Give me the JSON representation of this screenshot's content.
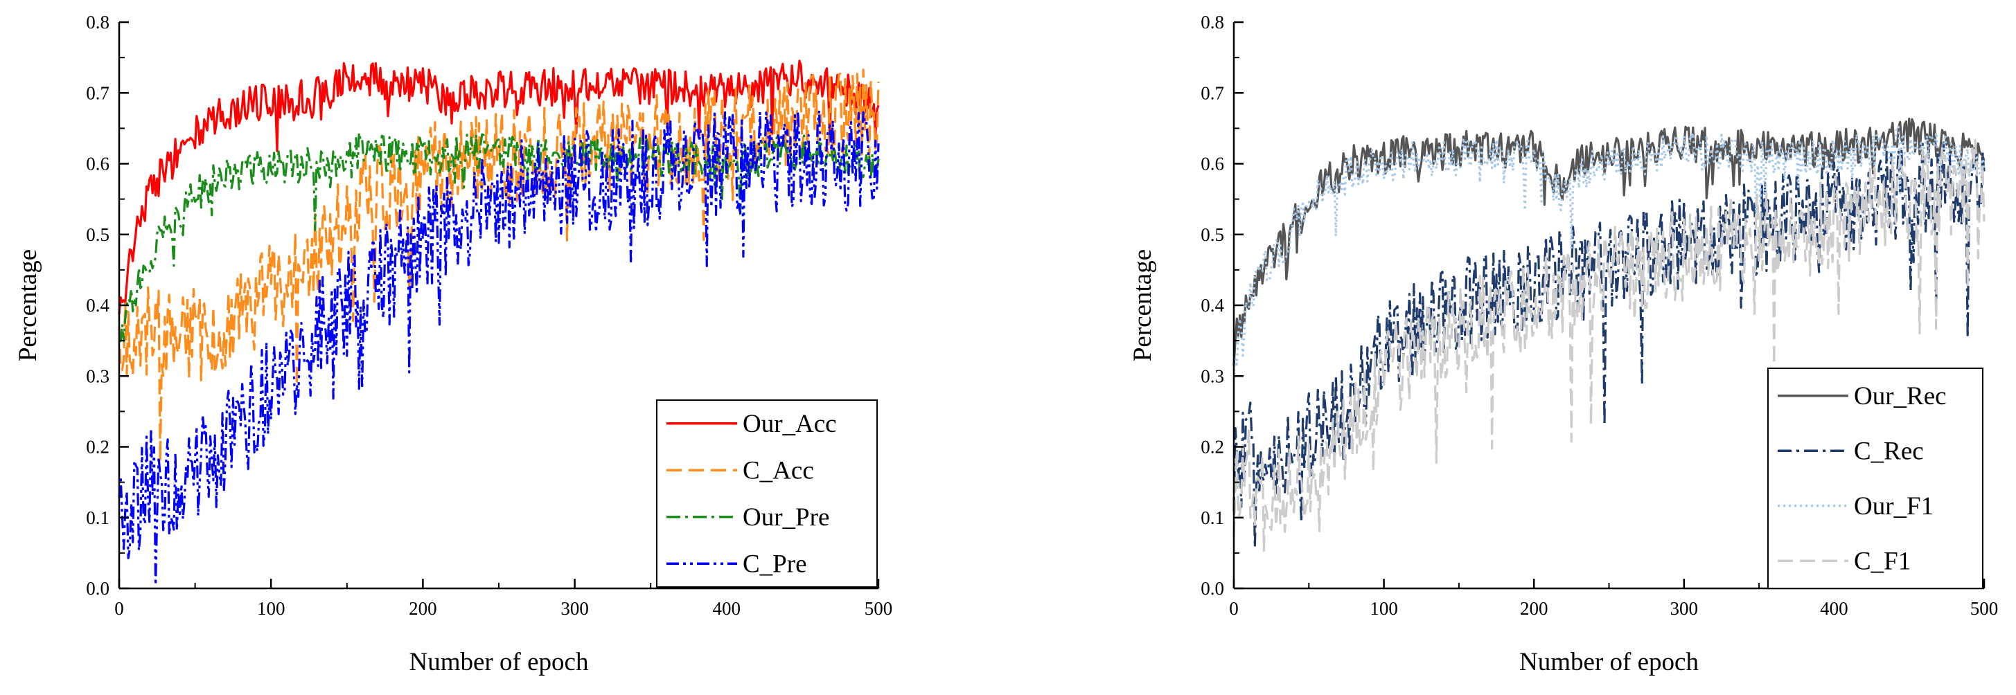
{
  "chart_data": [
    {
      "type": "line",
      "xlabel": "Number of epoch",
      "ylabel": "Percentage",
      "xlim": [
        0,
        500
      ],
      "ylim": [
        0,
        0.8
      ],
      "xticks": [
        "0",
        "100",
        "200",
        "300",
        "400",
        "500"
      ],
      "yticks": [
        "0.0",
        "0.1",
        "0.2",
        "0.3",
        "0.4",
        "0.5",
        "0.6",
        "0.7",
        "0.8"
      ],
      "legend_position": "bottom-right",
      "series": [
        {
          "name": "Our_Acc",
          "color": "#ff0000",
          "dash": "solid",
          "noise": 0.012,
          "x": [
            0,
            10,
            20,
            30,
            40,
            50,
            60,
            80,
            100,
            120,
            140,
            150,
            160,
            180,
            200,
            220,
            230,
            250,
            300,
            350,
            400,
            450,
            480,
            500
          ],
          "y": [
            0.38,
            0.5,
            0.56,
            0.59,
            0.62,
            0.64,
            0.66,
            0.68,
            0.69,
            0.695,
            0.7,
            0.72,
            0.725,
            0.71,
            0.715,
            0.68,
            0.7,
            0.705,
            0.71,
            0.71,
            0.7,
            0.72,
            0.7,
            0.68
          ]
        },
        {
          "name": "C_Acc",
          "color": "#ff8c1a",
          "dash": "dashed",
          "noise": 0.03,
          "x": [
            0,
            10,
            20,
            30,
            40,
            50,
            60,
            80,
            100,
            120,
            140,
            160,
            180,
            200,
            250,
            300,
            350,
            400,
            450,
            500
          ],
          "y": [
            0.35,
            0.36,
            0.37,
            0.36,
            0.35,
            0.36,
            0.33,
            0.38,
            0.42,
            0.46,
            0.5,
            0.55,
            0.57,
            0.59,
            0.61,
            0.62,
            0.63,
            0.64,
            0.66,
            0.67
          ]
        },
        {
          "name": "Our_Pre",
          "color": "#1a8c1a",
          "dash": "dashdot",
          "noise": 0.012,
          "x": [
            0,
            10,
            20,
            30,
            40,
            50,
            60,
            80,
            100,
            120,
            140,
            150,
            160,
            180,
            200,
            250,
            300,
            350,
            400,
            450,
            500
          ],
          "y": [
            0.34,
            0.42,
            0.47,
            0.5,
            0.53,
            0.56,
            0.57,
            0.59,
            0.595,
            0.6,
            0.59,
            0.62,
            0.62,
            0.615,
            0.61,
            0.62,
            0.61,
            0.61,
            0.6,
            0.62,
            0.6
          ]
        },
        {
          "name": "C_Pre",
          "color": "#0000ff",
          "dash": "dashdotdot",
          "noise": 0.035,
          "x": [
            0,
            10,
            20,
            30,
            40,
            50,
            60,
            70,
            80,
            100,
            120,
            140,
            160,
            180,
            200,
            250,
            300,
            350,
            400,
            450,
            500
          ],
          "y": [
            0.1,
            0.12,
            0.15,
            0.14,
            0.15,
            0.17,
            0.18,
            0.2,
            0.22,
            0.28,
            0.33,
            0.38,
            0.42,
            0.45,
            0.5,
            0.55,
            0.57,
            0.59,
            0.6,
            0.61,
            0.61
          ]
        }
      ]
    },
    {
      "type": "line",
      "xlabel": "Number of epoch",
      "ylabel": "Percentage",
      "xlim": [
        0,
        500
      ],
      "ylim": [
        0,
        0.8
      ],
      "xticks": [
        "0",
        "100",
        "200",
        "300",
        "400",
        "500"
      ],
      "yticks": [
        "0.0",
        "0.1",
        "0.2",
        "0.3",
        "0.4",
        "0.5",
        "0.6",
        "0.7",
        "0.8"
      ],
      "legend_position": "bottom-right",
      "series": [
        {
          "name": "Our_Rec",
          "color": "#555555",
          "dash": "solid",
          "noise": 0.012,
          "x": [
            0,
            10,
            20,
            30,
            40,
            50,
            60,
            80,
            100,
            150,
            200,
            220,
            230,
            250,
            300,
            350,
            400,
            450,
            500
          ],
          "y": [
            0.34,
            0.42,
            0.46,
            0.48,
            0.52,
            0.55,
            0.57,
            0.6,
            0.61,
            0.62,
            0.62,
            0.56,
            0.6,
            0.61,
            0.63,
            0.62,
            0.62,
            0.64,
            0.61
          ]
        },
        {
          "name": "C_Rec",
          "color": "#1f3b6e",
          "dash": "dashdot",
          "noise": 0.03,
          "x": [
            0,
            10,
            20,
            30,
            40,
            50,
            60,
            80,
            100,
            150,
            200,
            250,
            300,
            350,
            400,
            450,
            500
          ],
          "y": [
            0.17,
            0.2,
            0.2,
            0.19,
            0.2,
            0.21,
            0.22,
            0.26,
            0.34,
            0.4,
            0.43,
            0.46,
            0.49,
            0.51,
            0.54,
            0.56,
            0.58
          ]
        },
        {
          "name": "Our_F1",
          "color": "#a8c8e8",
          "dash": "dotted",
          "noise": 0.012,
          "x": [
            0,
            10,
            20,
            30,
            40,
            50,
            60,
            80,
            100,
            150,
            200,
            220,
            230,
            250,
            300,
            350,
            400,
            450,
            500
          ],
          "y": [
            0.33,
            0.41,
            0.45,
            0.47,
            0.51,
            0.54,
            0.56,
            0.59,
            0.6,
            0.61,
            0.61,
            0.55,
            0.59,
            0.6,
            0.62,
            0.61,
            0.61,
            0.63,
            0.6
          ]
        },
        {
          "name": "C_F1",
          "color": "#cccccc",
          "dash": "dashed",
          "noise": 0.03,
          "x": [
            0,
            10,
            20,
            30,
            40,
            50,
            60,
            80,
            100,
            150,
            200,
            250,
            300,
            350,
            400,
            450,
            500
          ],
          "y": [
            0.13,
            0.16,
            0.14,
            0.14,
            0.15,
            0.16,
            0.17,
            0.23,
            0.3,
            0.37,
            0.41,
            0.45,
            0.47,
            0.5,
            0.52,
            0.55,
            0.57
          ]
        }
      ]
    }
  ]
}
